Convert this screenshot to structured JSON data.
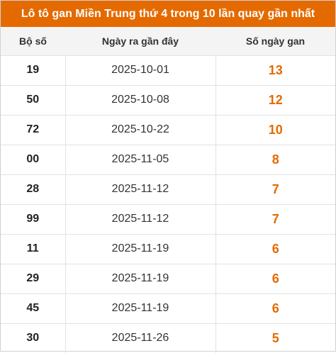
{
  "title": "Lô tô gan Miền Trung thứ 4 trong 10 lần quay gần nhất",
  "colors": {
    "accent": "#e46a00",
    "header_bg": "#f4f4f4"
  },
  "columns": [
    "Bộ số",
    "Ngày ra gần đây",
    "Số ngày gan"
  ],
  "rows": [
    {
      "number": "19",
      "date": "2025-10-01",
      "days": "13"
    },
    {
      "number": "50",
      "date": "2025-10-08",
      "days": "12"
    },
    {
      "number": "72",
      "date": "2025-10-22",
      "days": "10"
    },
    {
      "number": "00",
      "date": "2025-11-05",
      "days": "8"
    },
    {
      "number": "28",
      "date": "2025-11-12",
      "days": "7"
    },
    {
      "number": "99",
      "date": "2025-11-12",
      "days": "7"
    },
    {
      "number": "11",
      "date": "2025-11-19",
      "days": "6"
    },
    {
      "number": "29",
      "date": "2025-11-19",
      "days": "6"
    },
    {
      "number": "45",
      "date": "2025-11-19",
      "days": "6"
    },
    {
      "number": "30",
      "date": "2025-11-26",
      "days": "5"
    }
  ]
}
